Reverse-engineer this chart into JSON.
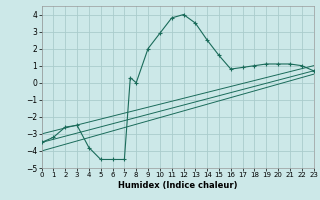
{
  "title": "",
  "xlabel": "Humidex (Indice chaleur)",
  "bg_color": "#cce8e8",
  "grid_color": "#aacccc",
  "line_color": "#1a6b5a",
  "xlim": [
    0,
    23
  ],
  "ylim": [
    -5,
    4.5
  ],
  "xticks": [
    0,
    1,
    2,
    3,
    4,
    5,
    6,
    7,
    8,
    9,
    10,
    11,
    12,
    13,
    14,
    15,
    16,
    17,
    18,
    19,
    20,
    21,
    22,
    23
  ],
  "yticks": [
    -5,
    -4,
    -3,
    -2,
    -1,
    0,
    1,
    2,
    3,
    4
  ],
  "main_x": [
    0,
    1,
    2,
    3,
    4,
    5,
    6,
    7,
    7.5,
    8,
    9,
    10,
    11,
    12,
    13,
    14,
    15,
    16,
    17,
    18,
    19,
    20,
    21,
    22,
    23
  ],
  "main_y": [
    -3.5,
    -3.2,
    -2.6,
    -2.5,
    -3.8,
    -4.5,
    -4.5,
    -4.5,
    0.3,
    0.0,
    2.0,
    2.9,
    3.8,
    4.0,
    3.5,
    2.5,
    1.6,
    0.8,
    0.9,
    1.0,
    1.1,
    1.1,
    1.1,
    1.0,
    0.7
  ],
  "reg_lines": [
    {
      "x0": 0,
      "y0": -3.5,
      "x1": 23,
      "y1": 0.7
    },
    {
      "x0": 0,
      "y0": -3.0,
      "x1": 23,
      "y1": 1.0
    },
    {
      "x0": 0,
      "y0": -4.0,
      "x1": 23,
      "y1": 0.5
    }
  ]
}
